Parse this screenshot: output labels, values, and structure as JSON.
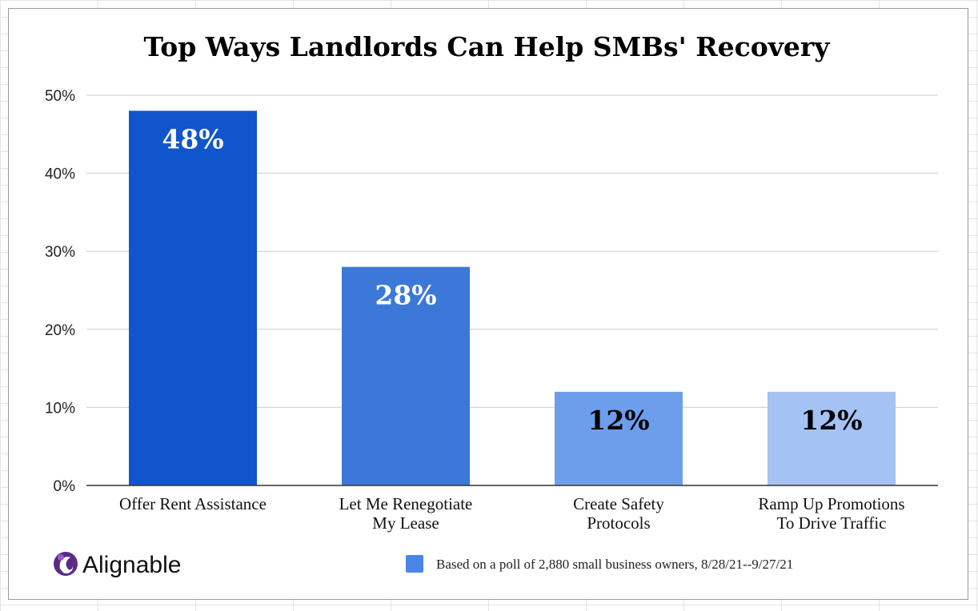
{
  "chart_data": {
    "type": "bar",
    "title": "Top Ways Landlords Can Help SMBs' Recovery",
    "categories": [
      [
        "Offer Rent Assistance"
      ],
      [
        "Let Me Renegotiate",
        "My Lease"
      ],
      [
        "Create Safety",
        "Protocols"
      ],
      [
        "Ramp Up Promotions",
        "To Drive Traffic"
      ]
    ],
    "values": [
      48,
      28,
      12,
      12
    ],
    "data_labels": [
      "48%",
      "28%",
      "12%",
      "12%"
    ],
    "bar_colors": [
      "#1155cc",
      "#3c78d8",
      "#6d9eeb",
      "#a4c2f4"
    ],
    "data_label_colors": [
      "#ffffff",
      "#ffffff",
      "#000000",
      "#000000"
    ],
    "y_ticks": [
      0,
      10,
      20,
      30,
      40,
      50
    ],
    "y_tick_labels": [
      "0%",
      "10%",
      "20%",
      "30%",
      "40%",
      "50%"
    ],
    "ylim": [
      0,
      50
    ],
    "grid": true,
    "legend": {
      "text": "Based on a poll of 2,880 small business owners, 8/28/21--9/27/21",
      "swatch_color": "#4a86e8",
      "position": "bottom-right"
    }
  },
  "branding": {
    "logo_text": "Alignable",
    "logo_icon": "alignable-swirl-icon",
    "logo_color": "#5b2a86"
  }
}
